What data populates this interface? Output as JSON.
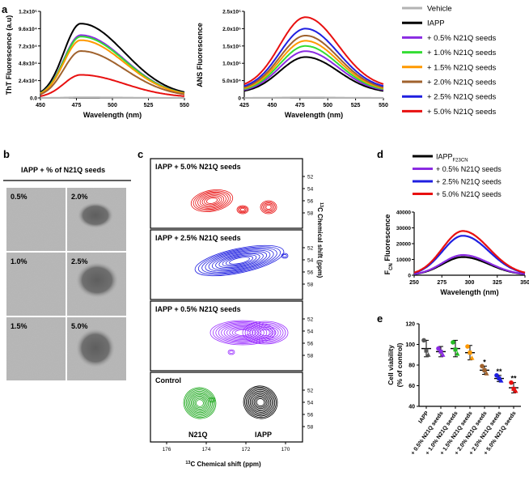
{
  "panel_letters": {
    "a": "a",
    "b": "b",
    "c": "c",
    "d": "d",
    "e": "e"
  },
  "legend_a": {
    "items": [
      {
        "label": "Vehicle",
        "color": "#b3b3b3"
      },
      {
        "label": "IAPP",
        "color": "#000000"
      },
      {
        "label": "+ 0.5% N21Q seeds",
        "color": "#8a2be2"
      },
      {
        "label": "+ 1.0% N21Q seeds",
        "color": "#33dd33"
      },
      {
        "label": "+ 1.5% N21Q seeds",
        "color": "#ff9900"
      },
      {
        "label": "+ 2.0% N21Q seeds",
        "color": "#a0622d"
      },
      {
        "label": "+ 2.5% N21Q seeds",
        "color": "#1f1fe0"
      },
      {
        "label": "+ 5.0% N21Q seeds",
        "color": "#e81010"
      }
    ]
  },
  "panel_b": {
    "title": "IAPP + % of N21Q  seeds",
    "tiles": [
      "0.5%",
      "2.0%",
      "1.0%",
      "2.5%",
      "1.5%",
      "5.0%"
    ]
  },
  "panel_c": {
    "spectra_labels": [
      "IAPP + 5.0% N21Q  seeds",
      "IAPP + 2.5% N21Q  seeds",
      "IAPP + 0.5% N21Q  seeds",
      "Control"
    ],
    "control_peaks": [
      "N21Q",
      "IAPP"
    ],
    "x_ticks": [
      "176",
      "174",
      "172",
      "170"
    ],
    "y_ticks": [
      "52",
      "54",
      "56",
      "58"
    ],
    "xlabel_sup": "13",
    "xlabel": "C Chemical shift (ppm)",
    "ylabel_sup": "13",
    "ylabel": "C Chemical shift (ppm)",
    "colors": [
      "#e81010",
      "#1f1fe0",
      "#9b30ff",
      "#22aa22",
      "#000000"
    ]
  },
  "legend_d": {
    "items": [
      {
        "label": "IAPP",
        "sub": "F23CN",
        "color": "#000000"
      },
      {
        "label": "+ 0.5% N21Q seeds",
        "sub": "",
        "color": "#8a2be2"
      },
      {
        "label": "+ 2.5% N21Q seeds",
        "sub": "",
        "color": "#1f1fe0"
      },
      {
        "label": "+ 5.0% N21Q seeds",
        "sub": "",
        "color": "#e81010"
      }
    ]
  },
  "chart_data": [
    {
      "id": "a_tht",
      "type": "line",
      "title": "",
      "xlabel": "Wavelength (nm)",
      "ylabel": "ThT Fluorescence (a.u)",
      "xlim": [
        450,
        550
      ],
      "ylim": [
        0,
        120000
      ],
      "x_ticks": [
        "450",
        "475",
        "500",
        "525",
        "550"
      ],
      "y_ticks": [
        "0.0",
        "2.4x10⁴",
        "4.8x10⁴",
        "7.2x10⁴",
        "9.6x10⁴",
        "1.2x10⁵"
      ],
      "peak_x": 478,
      "series": [
        {
          "name": "Vehicle",
          "color": "#b3b3b3",
          "peak": 800
        },
        {
          "name": "IAPP",
          "color": "#000000",
          "peak": 103000
        },
        {
          "name": "+ 0.5% N21Q seeds",
          "color": "#8a2be2",
          "peak": 87000
        },
        {
          "name": "+ 1.0% N21Q seeds",
          "color": "#33dd33",
          "peak": 85000
        },
        {
          "name": "+ 1.5% N21Q seeds",
          "color": "#ff9900",
          "peak": 80000
        },
        {
          "name": "+ 2.0% N21Q seeds",
          "color": "#a0622d",
          "peak": 65000
        },
        {
          "name": "+ 5.0% N21Q seeds",
          "color": "#e81010",
          "peak": 32000
        }
      ]
    },
    {
      "id": "a_ans",
      "type": "line",
      "xlabel": "Wavelength (nm)",
      "ylabel": "ANS Fluorescence (a.u)",
      "xlim": [
        425,
        550
      ],
      "ylim": [
        0,
        250000
      ],
      "x_ticks": [
        "425",
        "450",
        "475",
        "500",
        "525",
        "550"
      ],
      "y_ticks": [
        "0",
        "5.0x10⁴",
        "1.0x10⁵",
        "1.5x10⁵",
        "2.0x10⁵",
        "2.5x10⁵"
      ],
      "peak_x": 480,
      "series": [
        {
          "name": "Vehicle",
          "color": "#b3b3b3",
          "peak": 1500
        },
        {
          "name": "IAPP",
          "color": "#000000",
          "peak": 118000
        },
        {
          "name": "+ 0.5% N21Q seeds",
          "color": "#8a2be2",
          "peak": 135000
        },
        {
          "name": "+ 1.0% N21Q seeds",
          "color": "#33dd33",
          "peak": 150000
        },
        {
          "name": "+ 1.5% N21Q seeds",
          "color": "#ff9900",
          "peak": 165000
        },
        {
          "name": "+ 2.0% N21Q seeds",
          "color": "#a0622d",
          "peak": 180000
        },
        {
          "name": "+ 2.5% N21Q seeds",
          "color": "#1f1fe0",
          "peak": 200000
        },
        {
          "name": "+ 5.0% N21Q seeds",
          "color": "#e81010",
          "peak": 233000
        }
      ]
    },
    {
      "id": "d_fcn",
      "type": "line",
      "xlabel": "Wavelength (nm)",
      "ylabel_main": "F",
      "ylabel_sub": "CN",
      "ylabel_rest": " Fluorescence",
      "xlim": [
        250,
        350
      ],
      "ylim": [
        0,
        40000
      ],
      "x_ticks": [
        "250",
        "275",
        "300",
        "325",
        "350"
      ],
      "y_ticks": [
        "0",
        "10000",
        "20000",
        "30000",
        "40000"
      ],
      "peak_x": 294,
      "series": [
        {
          "name": "IAPPF23CN",
          "color": "#000000",
          "peak": 11500
        },
        {
          "name": "+ 0.5% N21Q seeds",
          "color": "#8a2be2",
          "peak": 12800
        },
        {
          "name": "+ 2.5% N21Q seeds",
          "color": "#1f1fe0",
          "peak": 25000
        },
        {
          "name": "+ 5.0% N21Q seeds",
          "color": "#e81010",
          "peak": 28000
        }
      ]
    },
    {
      "id": "e_viability",
      "type": "scatter",
      "ylabel": "Cell viability (% of control)",
      "ylim": [
        40,
        120
      ],
      "y_ticks": [
        "40",
        "60",
        "80",
        "100",
        "120"
      ],
      "categories": [
        "IAPP",
        "+ 0.5% N21Q seeds",
        "+ 1.0% N21Q seeds",
        "+ 1.5% N21Q seeds",
        "+ 2.0% N21Q seeds",
        "+ 2.5% N21Q seeds",
        "+ 5.0% N21Q seeds"
      ],
      "colors": [
        "#555555",
        "#8a2be2",
        "#22bb22",
        "#ff9900",
        "#a0622d",
        "#1f1fe0",
        "#e81010"
      ],
      "means": [
        96,
        93,
        96,
        92,
        75,
        67,
        58
      ],
      "sd": [
        8,
        5,
        8,
        7,
        4,
        3,
        5
      ],
      "points": [
        [
          104,
          90,
          94
        ],
        [
          96,
          90,
          93
        ],
        [
          102,
          91,
          95
        ],
        [
          98,
          87,
          92
        ],
        [
          79,
          72,
          75
        ],
        [
          70,
          65,
          67
        ],
        [
          63,
          55,
          57
        ]
      ],
      "significance": [
        "",
        "",
        "",
        "",
        "*",
        "**",
        "**"
      ]
    }
  ]
}
